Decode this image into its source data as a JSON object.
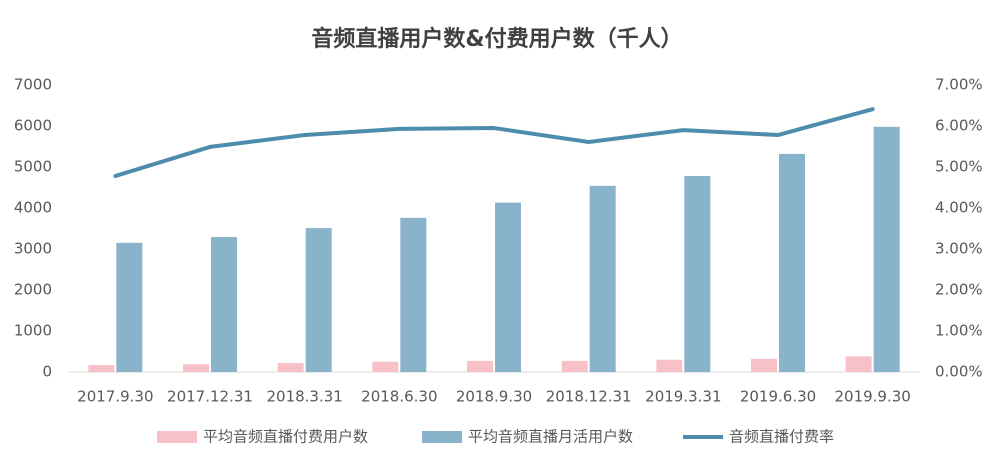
{
  "chart_data": {
    "type": "bar",
    "title": "音频直播用户数&付费用户数（千人）",
    "categories": [
      "2017.9.30",
      "2017.12.31",
      "2018.3.31",
      "2018.6.30",
      "2018.9.30",
      "2018.12.31",
      "2019.3.31",
      "2019.6.30",
      "2019.9.30"
    ],
    "series": [
      {
        "name": "平均音频直播付费用户数",
        "color": "#f8c1c7",
        "values": [
          170,
          190,
          220,
          250,
          270,
          270,
          300,
          320,
          380
        ]
      },
      {
        "name": "平均音频直播月活用户数",
        "color": "#89b3ca",
        "values": [
          3150,
          3290,
          3510,
          3760,
          4130,
          4540,
          4780,
          5320,
          5980
        ]
      },
      {
        "name": "音频直播付费率",
        "color": "#4d8cad",
        "type": "line",
        "axis": "y2",
        "values": [
          4.78,
          5.49,
          5.78,
          5.93,
          5.95,
          5.61,
          5.9,
          5.78,
          6.41
        ]
      }
    ],
    "ylim": [
      0,
      7000
    ],
    "yticks": [
      0,
      1000,
      2000,
      3000,
      4000,
      5000,
      6000,
      7000
    ],
    "y2lim": [
      0,
      7
    ],
    "y2ticks": [
      {
        "value": 0,
        "label": "0.00%"
      },
      {
        "value": 1,
        "label": "1.00%"
      },
      {
        "value": 2,
        "label": "2.00%"
      },
      {
        "value": 3,
        "label": "3.00%"
      },
      {
        "value": 4,
        "label": "4.00%"
      },
      {
        "value": 5,
        "label": "5.00%"
      },
      {
        "value": 6,
        "label": "6.00%"
      },
      {
        "value": 7,
        "label": "7.00%"
      }
    ],
    "grid": false,
    "legend": "bottom"
  }
}
